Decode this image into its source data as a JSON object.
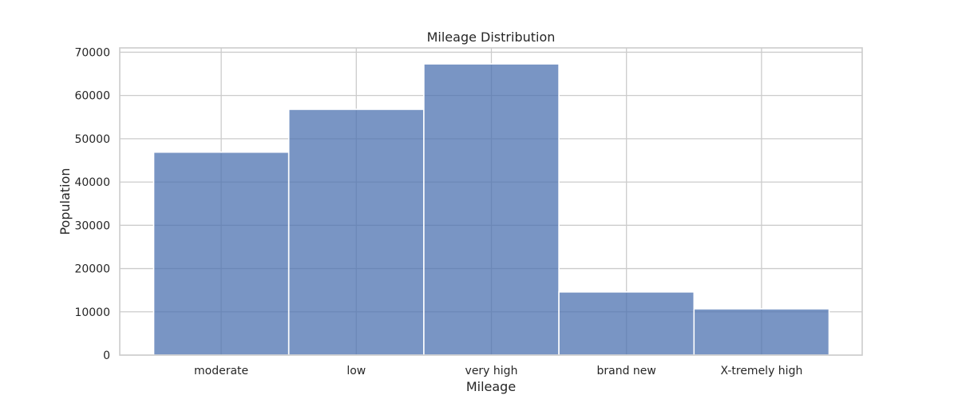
{
  "chart_data": {
    "type": "bar",
    "title": "Mileage Distribution",
    "xlabel": "Mileage",
    "ylabel": "Population",
    "categories": [
      "moderate",
      "low",
      "very high",
      "brand new",
      "X-tremely high"
    ],
    "values": [
      46900,
      56800,
      67300,
      14600,
      10700
    ],
    "ylim": [
      0,
      71000
    ],
    "yticks": [
      0,
      10000,
      20000,
      30000,
      40000,
      50000,
      60000,
      70000
    ],
    "ytick_labels": [
      "0",
      "10000",
      "20000",
      "30000",
      "40000",
      "50000",
      "60000",
      "70000"
    ],
    "grid": true,
    "bar_color": "#4c72b0"
  }
}
